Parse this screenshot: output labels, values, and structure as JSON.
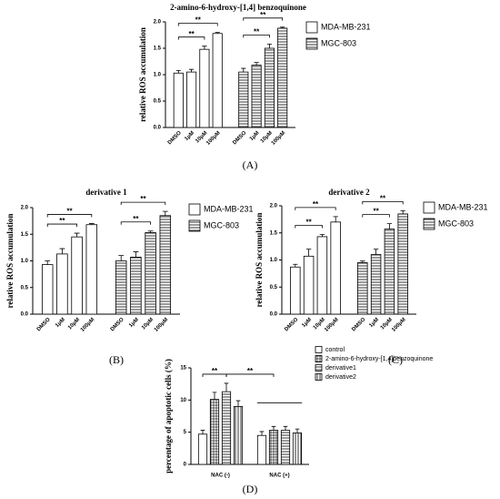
{
  "chart_data": [
    {
      "type": "bar",
      "layout": "series-blocks",
      "rotate_labels": true,
      "title": "2-amino-6-hydroxy-[1,4] benzoquinone",
      "panel_label": "(A)",
      "y_label": "relative ROS accumulation",
      "categories": [
        "DMSO",
        "1μM",
        "10μM",
        "100μM"
      ],
      "series": [
        {
          "name": "MDA-MB-231",
          "pattern": "none",
          "values": [
            1.03,
            1.05,
            1.48,
            1.78
          ],
          "errors": [
            0.05,
            0.05,
            0.06,
            0.02
          ]
        },
        {
          "name": "MGC-803",
          "pattern": "horizontal",
          "values": [
            1.05,
            1.18,
            1.5,
            1.88
          ],
          "errors": [
            0.07,
            0.05,
            0.08,
            0.02
          ]
        }
      ],
      "ylim": [
        0,
        2
      ],
      "yticks": [
        {
          "value": 0,
          "label": "0.0"
        },
        {
          "value": 0.5,
          "label": "0.5"
        },
        {
          "value": 1,
          "label": "1.0"
        },
        {
          "value": 1.5,
          "label": "1.5"
        },
        {
          "value": 2,
          "label": "2.0"
        }
      ],
      "significance": [
        {
          "text": "**",
          "from": [
            0,
            0
          ],
          "to": [
            0,
            2
          ]
        },
        {
          "text": "**",
          "from": [
            0,
            0
          ],
          "to": [
            0,
            3
          ]
        },
        {
          "text": "**",
          "from": [
            1,
            0
          ],
          "to": [
            1,
            2
          ]
        },
        {
          "text": "**",
          "from": [
            1,
            0
          ],
          "to": [
            1,
            3
          ]
        }
      ]
    },
    {
      "type": "bar",
      "layout": "series-blocks",
      "rotate_labels": true,
      "title": "derivative 1",
      "panel_label": "(B)",
      "y_label": "relative ROS accumulation",
      "categories": [
        "DMSO",
        "1μM",
        "10μM",
        "100μM"
      ],
      "series": [
        {
          "name": "MDA-MB-231",
          "pattern": "none",
          "values": [
            0.93,
            1.13,
            1.45,
            1.68
          ],
          "errors": [
            0.07,
            0.1,
            0.07,
            0.02
          ]
        },
        {
          "name": "MGC-803",
          "pattern": "horizontal",
          "values": [
            1.0,
            1.07,
            1.53,
            1.85
          ],
          "errors": [
            0.1,
            0.1,
            0.03,
            0.08
          ]
        }
      ],
      "ylim": [
        0,
        2
      ],
      "yticks": [
        {
          "value": 0,
          "label": "0.0"
        },
        {
          "value": 0.5,
          "label": "0.5"
        },
        {
          "value": 1,
          "label": "1.0"
        },
        {
          "value": 1.5,
          "label": "1.5"
        },
        {
          "value": 2,
          "label": "2.0"
        }
      ],
      "significance": [
        {
          "text": "**",
          "from": [
            0,
            0
          ],
          "to": [
            0,
            2
          ]
        },
        {
          "text": "**",
          "from": [
            0,
            0
          ],
          "to": [
            0,
            3
          ]
        },
        {
          "text": "**",
          "from": [
            1,
            0
          ],
          "to": [
            1,
            2
          ]
        },
        {
          "text": "**",
          "from": [
            1,
            0
          ],
          "to": [
            1,
            3
          ]
        }
      ]
    },
    {
      "type": "bar",
      "layout": "series-blocks",
      "rotate_labels": true,
      "title": "derivative 2",
      "panel_label": "(C)",
      "y_label": "relative ROS accumulation",
      "categories": [
        "DMSO",
        "1μM",
        "10μM",
        "100μM"
      ],
      "series": [
        {
          "name": "MDA-MB-231",
          "pattern": "none",
          "values": [
            0.87,
            1.07,
            1.43,
            1.7
          ],
          "errors": [
            0.05,
            0.13,
            0.04,
            0.1
          ]
        },
        {
          "name": "MGC-803",
          "pattern": "horizontal",
          "values": [
            0.95,
            1.1,
            1.57,
            1.85
          ],
          "errors": [
            0.03,
            0.1,
            0.1,
            0.06
          ]
        }
      ],
      "ylim": [
        0,
        2
      ],
      "yticks": [
        {
          "value": 0,
          "label": "0.0"
        },
        {
          "value": 0.5,
          "label": "0.5"
        },
        {
          "value": 1,
          "label": "1.0"
        },
        {
          "value": 1.5,
          "label": "1.5"
        },
        {
          "value": 2,
          "label": "2.0"
        }
      ],
      "significance": [
        {
          "text": "**",
          "from": [
            0,
            0
          ],
          "to": [
            0,
            2
          ]
        },
        {
          "text": "**",
          "from": [
            0,
            0
          ],
          "to": [
            0,
            3
          ]
        },
        {
          "text": "**",
          "from": [
            1,
            0
          ],
          "to": [
            1,
            2
          ]
        },
        {
          "text": "**",
          "from": [
            1,
            0
          ],
          "to": [
            1,
            3
          ]
        }
      ]
    },
    {
      "type": "bar",
      "layout": "grouped",
      "rotate_labels": false,
      "panel_label": "(D)",
      "y_label": "percentage of apoptotic cells (%)",
      "categories": [
        "NAC (-)",
        "NAC (+)"
      ],
      "series": [
        {
          "name": "control",
          "pattern": "none",
          "values": [
            4.7,
            4.5
          ],
          "errors": [
            0.6,
            0.6
          ]
        },
        {
          "name": "2-amino-6-hydroxy-[1,4]benzoquinone",
          "pattern": "grid",
          "values": [
            10.1,
            5.3
          ],
          "errors": [
            1.1,
            0.6
          ]
        },
        {
          "name": "derivative1",
          "pattern": "horizontal",
          "values": [
            11.3,
            5.3
          ],
          "errors": [
            1.3,
            0.6
          ]
        },
        {
          "name": "derivative2",
          "pattern": "vertical",
          "values": [
            9.0,
            4.9
          ],
          "errors": [
            0.9,
            0.6
          ]
        }
      ],
      "ylim": [
        0,
        15
      ],
      "yticks": [
        0,
        5,
        10,
        15
      ],
      "significance": [
        {
          "text": "**",
          "from": [
            0,
            0
          ],
          "to": [
            0,
            2
          ]
        },
        {
          "text": "**",
          "from": [
            0,
            2
          ],
          "to": [
            1,
            1
          ]
        }
      ]
    }
  ]
}
